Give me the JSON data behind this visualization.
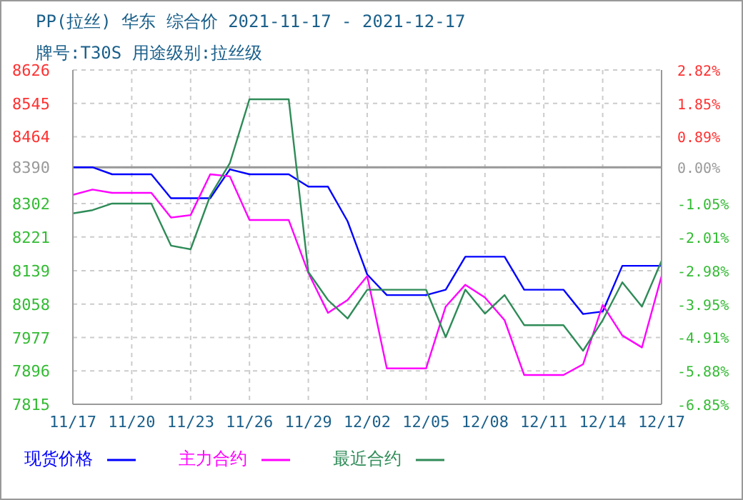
{
  "chart_data": {
    "type": "line",
    "title": "PP(拉丝) 华东 综合价 2021-11-17 - 2021-12-17",
    "subtitle": "牌号:T30S 用途级别:拉丝级",
    "categories": [
      "11/17",
      null,
      null,
      "11/20",
      null,
      null,
      "11/23",
      null,
      null,
      "11/26",
      null,
      null,
      "11/29",
      null,
      null,
      "12/02",
      null,
      null,
      "12/05",
      null,
      null,
      "12/08",
      null,
      null,
      "12/11",
      null,
      null,
      "12/14",
      null,
      null,
      "12/17"
    ],
    "series": [
      {
        "name": "现货价格",
        "color": "#0000ff",
        "values": [
          8390,
          8390,
          8373,
          8373,
          8373,
          8315,
          8315,
          8315,
          8385,
          8373,
          8373,
          8373,
          8343,
          8343,
          8259,
          8130,
          8080,
          8080,
          8080,
          8093,
          8173,
          8173,
          8173,
          8093,
          8093,
          8093,
          8034,
          8040,
          8151,
          8151,
          8151
        ]
      },
      {
        "name": "主力合约",
        "color": "#ff00ff",
        "values": [
          8323,
          8336,
          8328,
          8328,
          8328,
          8268,
          8274,
          8373,
          8368,
          8262,
          8262,
          8262,
          8134,
          8037,
          8068,
          8126,
          7902,
          7902,
          7902,
          8052,
          8105,
          8074,
          8019,
          7886,
          7886,
          7886,
          7912,
          8056,
          7982,
          7953,
          8126
        ]
      },
      {
        "name": "最近合约",
        "color": "#2e8b57",
        "values": [
          8278,
          8286,
          8302,
          8302,
          8302,
          8200,
          8191,
          8321,
          8400,
          8555,
          8555,
          8555,
          8136,
          8068,
          8023,
          8093,
          8093,
          8093,
          8093,
          7978,
          8093,
          8035,
          8080,
          8007,
          8007,
          8007,
          7945,
          8019,
          8111,
          8052,
          8163
        ]
      }
    ],
    "ylim": [
      7815,
      8626
    ],
    "yticks": [
      7815,
      7896,
      7977,
      8058,
      8139,
      8221,
      8302,
      8390,
      8464,
      8545,
      8626
    ],
    "y2lim": [
      -6.85,
      2.82
    ],
    "y2ticks": [
      {
        "value": -6.85,
        "label": "-6.85%"
      },
      {
        "value": -5.88,
        "label": "-5.88%"
      },
      {
        "value": -4.91,
        "label": "-4.91%"
      },
      {
        "value": -3.95,
        "label": "-3.95%"
      },
      {
        "value": -2.98,
        "label": "-2.98%"
      },
      {
        "value": -2.01,
        "label": "-2.01%"
      },
      {
        "value": -1.05,
        "label": "-1.05%"
      },
      {
        "value": 0,
        "label": "0.00%"
      },
      {
        "value": 0.89,
        "label": "0.89%"
      },
      {
        "value": 1.85,
        "label": "1.85%"
      },
      {
        "value": 2.82,
        "label": "2.82%"
      }
    ],
    "ref_lines": [
      {
        "axis": "y",
        "value": 8390,
        "color": "#999999"
      }
    ],
    "grid": true,
    "legend": "bottom",
    "marker": "none",
    "line_style": "solid"
  }
}
